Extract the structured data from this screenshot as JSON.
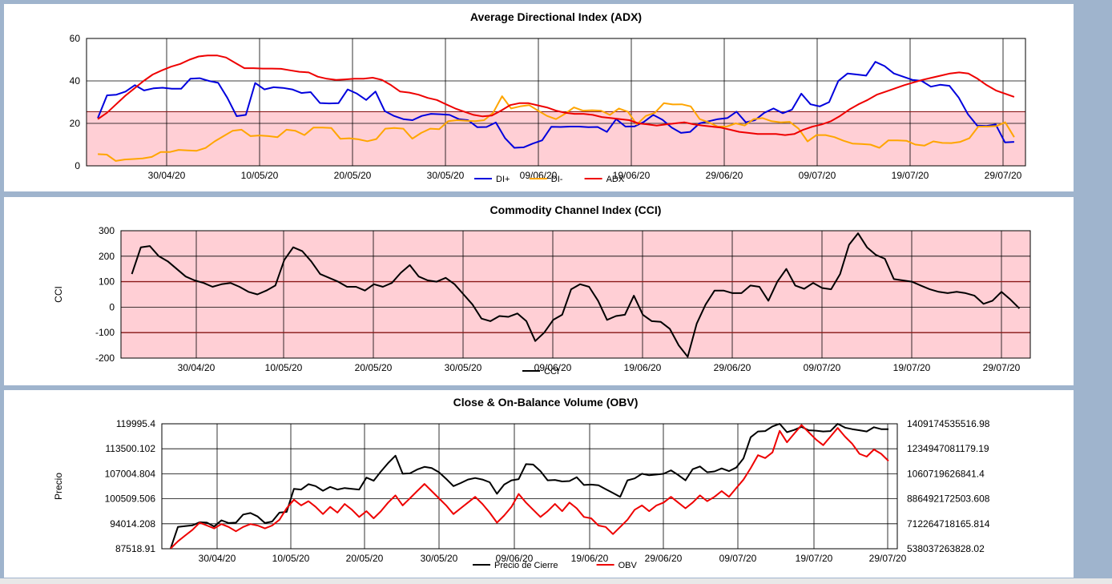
{
  "colors": {
    "di_plus": "#0000dd",
    "di_minus": "#ffa500",
    "adx": "#ee0000",
    "cci": "#000000",
    "close": "#000000",
    "obv": "#ee0000",
    "band": "#ffcfd5",
    "band_line": "#8b1a1a"
  },
  "chart_data": [
    {
      "type": "line",
      "title": "Average Directional Index (ADX)",
      "ylabel": "",
      "ylim": [
        0,
        60
      ],
      "yticks": [
        "0",
        "20",
        "40",
        "60"
      ],
      "xticks": [
        "30/04/20",
        "10/05/20",
        "20/05/20",
        "30/05/20",
        "09/06/20",
        "19/06/20",
        "29/06/20",
        "09/07/20",
        "19/07/20",
        "29/07/20"
      ],
      "band": [
        0,
        25.5
      ],
      "grid": true,
      "legend_position": "bottom",
      "series": [
        {
          "name": "DI+",
          "values": [
            22.5,
            33.2,
            33.5,
            35,
            38,
            35.5,
            36.5,
            36.8,
            36.3,
            36.3,
            41,
            41.3,
            40,
            39.1,
            32,
            23.4,
            24,
            39,
            36,
            37,
            36.7,
            36,
            34.3,
            34.7,
            29.6,
            29.4,
            29.5,
            36,
            34,
            31,
            35,
            25.8,
            23.5,
            22,
            21.5,
            23.5,
            24.5,
            24.3,
            24,
            22,
            21.5,
            18.2,
            18.3,
            20.4,
            13,
            8.5,
            8.7,
            10.5,
            12,
            18.4,
            18.3,
            18.5,
            18.5,
            18.2,
            18.3,
            16,
            22,
            18.5,
            18.6,
            20.7,
            24,
            21.7,
            18,
            15.5,
            16,
            20,
            21,
            22,
            22.5,
            25.5,
            20.5,
            21.5,
            25,
            27,
            24.8,
            26.5,
            34,
            29,
            28,
            30,
            40,
            43.5,
            43,
            42.5,
            49,
            47,
            43.5,
            42,
            40.5,
            40,
            37.3,
            38.2,
            37.7,
            32.2,
            24.3,
            19,
            18.8,
            19.5,
            11,
            11.3
          ]
        },
        {
          "name": "DI-",
          "values": [
            5.5,
            5.3,
            2.3,
            3,
            3.2,
            3.5,
            4.2,
            6.5,
            6.5,
            7.5,
            7.3,
            7.1,
            8.4,
            11.5,
            14,
            16.5,
            17,
            14,
            14.3,
            14,
            13.5,
            17,
            16.5,
            14.5,
            18,
            18,
            17.8,
            12.7,
            13,
            12.5,
            11.6,
            12.6,
            17.5,
            17.8,
            17.5,
            12.8,
            15.5,
            17.5,
            17.3,
            21,
            21.5,
            21.2,
            21,
            21.5,
            25,
            32.8,
            27,
            28,
            28.6,
            26,
            23.5,
            22,
            24.5,
            27.5,
            26,
            26.2,
            26,
            24,
            27,
            25.5,
            19.5,
            23.5,
            25,
            29.5,
            28.9,
            29,
            28,
            22,
            20.5,
            18.5,
            18.5,
            20,
            19,
            22,
            22.5,
            21,
            20.5,
            20.7,
            17.5,
            11.5,
            14.5,
            14.5,
            13.5,
            11.8,
            10.5,
            10.3,
            10,
            8.5,
            12,
            12,
            11.8,
            10,
            9.5,
            11.5,
            10.8,
            10.7,
            11.3,
            13,
            18.5,
            18.5,
            18.7,
            20.5,
            13.5
          ]
        },
        {
          "name": "ADX",
          "values": [
            22,
            25,
            29,
            33,
            36.5,
            40,
            43,
            45,
            46.7,
            48,
            50,
            51.5,
            52,
            52,
            51,
            48.5,
            46,
            46,
            45.8,
            45.8,
            45.7,
            45,
            44.3,
            44,
            42,
            41,
            40.5,
            40.7,
            41,
            41,
            41.5,
            40.5,
            38,
            35,
            34.5,
            33.5,
            32,
            31,
            29,
            27,
            25.5,
            24,
            23.3,
            23.7,
            26,
            28.6,
            29.5,
            29.5,
            28.5,
            27.5,
            26,
            25,
            24.5,
            24.5,
            24,
            23,
            22.5,
            22,
            21.5,
            20,
            19.5,
            19,
            19.5,
            20,
            20.5,
            19.6,
            19,
            18.5,
            18,
            17,
            16,
            15.5,
            15,
            15,
            15,
            14.5,
            15,
            17,
            18.5,
            19.5,
            21,
            23.5,
            26.5,
            29,
            31,
            33.5,
            35,
            36.5,
            38,
            39.3,
            40.5,
            41.5,
            42.5,
            43.5,
            44,
            43.5,
            41,
            38,
            35.5,
            34,
            32.5
          ]
        }
      ]
    },
    {
      "type": "line",
      "title": "Commodity Channel Index (CCI)",
      "ylabel": "CCI",
      "ylim": [
        -200,
        300
      ],
      "yticks": [
        "-200",
        "-100",
        "0",
        "100",
        "200",
        "300"
      ],
      "xticks": [
        "30/04/20",
        "10/05/20",
        "20/05/20",
        "30/05/20",
        "09/06/20",
        "19/06/20",
        "29/06/20",
        "09/07/20",
        "19/07/20",
        "29/07/20"
      ],
      "band": [
        -200,
        300
      ],
      "thresholds": [
        100,
        -100
      ],
      "grid": true,
      "legend_position": "bottom",
      "series": [
        {
          "name": "CCI",
          "values": [
            130,
            235,
            240,
            200,
            180,
            150,
            120,
            105,
            95,
            80,
            90,
            95,
            80,
            60,
            50,
            65,
            85,
            185,
            235,
            220,
            180,
            130,
            115,
            100,
            80,
            80,
            65,
            90,
            80,
            95,
            135,
            165,
            120,
            105,
            100,
            115,
            90,
            50,
            10,
            -45,
            -55,
            -35,
            -38,
            -25,
            -55,
            -133,
            -100,
            -50,
            -30,
            70,
            90,
            80,
            25,
            -50,
            -35,
            -30,
            45,
            -30,
            -55,
            -58,
            -85,
            -150,
            -195,
            -65,
            10,
            65,
            65,
            55,
            55,
            85,
            80,
            25,
            100,
            150,
            85,
            72,
            95,
            75,
            70,
            130,
            245,
            290,
            235,
            205,
            190,
            110,
            105,
            100,
            85,
            70,
            60,
            55,
            60,
            55,
            45,
            13,
            25,
            60,
            30,
            -5
          ]
        }
      ]
    },
    {
      "type": "line",
      "title": "Close &  On-Balance Volume (OBV)",
      "ylabel": "Precio",
      "ylim": [
        87518.91,
        119995.4
      ],
      "ylim_right": [
        538037263828.02,
        1409174535516.98
      ],
      "yticks": [
        "87518.91",
        "94014.208",
        "100509.506",
        "107004.804",
        "113500.102",
        "119995.4"
      ],
      "yticks_right": [
        "538037263828.02",
        "712264718165.814",
        "886492172503.608",
        "1060719626841.4",
        "1234947081179.19",
        "1409174535516.98"
      ],
      "xticks": [
        "30/04/20",
        "10/05/20",
        "20/05/20",
        "30/05/20",
        "09/06/20",
        "19/06/20",
        "29/06/20",
        "09/07/20",
        "19/07/20",
        "29/07/20"
      ],
      "grid": true,
      "legend_position": "bottom",
      "series": [
        {
          "name": "Precio de Cierre",
          "axis": "left",
          "values": [
            87600,
            93200,
            93400,
            93600,
            94400,
            94300,
            93300,
            94900,
            94200,
            94300,
            96400,
            96800,
            95900,
            94200,
            94600,
            96900,
            97100,
            103100,
            102900,
            104300,
            103800,
            102600,
            103600,
            102900,
            103300,
            103100,
            102900,
            106000,
            105200,
            107600,
            109800,
            111700,
            107000,
            107100,
            108100,
            108800,
            108500,
            107400,
            105700,
            103800,
            104600,
            105500,
            105900,
            105500,
            104800,
            101800,
            104200,
            105300,
            105600,
            109500,
            109400,
            107700,
            105300,
            105400,
            105000,
            105100,
            106100,
            104100,
            104200,
            104000,
            103000,
            102000,
            101000,
            105300,
            105800,
            107000,
            106600,
            106800,
            107000,
            107900,
            106700,
            105300,
            108200,
            108900,
            107400,
            107600,
            108400,
            107700,
            108600,
            111000,
            116500,
            118000,
            118100,
            119300,
            120000,
            117800,
            118400,
            119200,
            118300,
            118200,
            118000,
            118100,
            120000,
            119000,
            118600,
            118300,
            118000,
            119100,
            118600,
            118600
          ]
        },
        {
          "name": "OBV",
          "axis": "right",
          "values": [
            540000000000,
            590000000000,
            630000000000,
            670000000000,
            720000000000,
            700000000000,
            680000000000,
            710000000000,
            690000000000,
            660000000000,
            690000000000,
            710000000000,
            700000000000,
            680000000000,
            700000000000,
            740000000000,
            820000000000,
            880000000000,
            840000000000,
            870000000000,
            830000000000,
            780000000000,
            830000000000,
            790000000000,
            850000000000,
            810000000000,
            760000000000,
            800000000000,
            750000000000,
            800000000000,
            860000000000,
            910000000000,
            840000000000,
            890000000000,
            940000000000,
            990000000000,
            940000000000,
            890000000000,
            840000000000,
            780000000000,
            820000000000,
            860000000000,
            900000000000,
            850000000000,
            790000000000,
            720000000000,
            770000000000,
            830000000000,
            920000000000,
            860000000000,
            810000000000,
            760000000000,
            800000000000,
            850000000000,
            800000000000,
            860000000000,
            820000000000,
            760000000000,
            750000000000,
            700000000000,
            690000000000,
            640000000000,
            690000000000,
            740000000000,
            810000000000,
            840000000000,
            800000000000,
            840000000000,
            860000000000,
            900000000000,
            860000000000,
            820000000000,
            860000000000,
            910000000000,
            870000000000,
            900000000000,
            940000000000,
            900000000000,
            960000000000,
            1020000000000,
            1100000000000,
            1190000000000,
            1170000000000,
            1210000000000,
            1360000000000,
            1280000000000,
            1340000000000,
            1400000000000,
            1350000000000,
            1300000000000,
            1260000000000,
            1320000000000,
            1380000000000,
            1320000000000,
            1270000000000,
            1200000000000,
            1180000000000,
            1230000000000,
            1200000000000,
            1150000000000
          ]
        }
      ]
    }
  ]
}
